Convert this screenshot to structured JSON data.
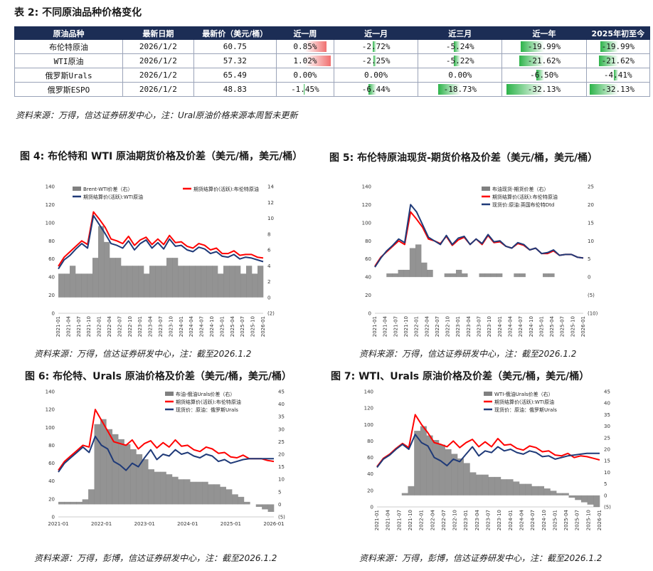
{
  "table_title": "表 2:  不同原油品种价格变化",
  "table": {
    "headers": [
      "原油品种",
      "最新日期",
      "最新价（美元/桶）",
      "近一周",
      "近一月",
      "近三月",
      "近一年",
      "2025年初至今"
    ],
    "rows": [
      {
        "name": "布伦特原油",
        "date": "2026/1/2",
        "price": "60.75",
        "w": "0.85%",
        "m": "-2.72%",
        "q": "-5.24%",
        "y": "-19.99%",
        "ytd": "-19.99%"
      },
      {
        "name": "WTI原油",
        "date": "2026/1/2",
        "price": "57.32",
        "w": "1.02%",
        "m": "-2.25%",
        "q": "-5.22%",
        "y": "-21.62%",
        "ytd": "-21.62%"
      },
      {
        "name": "俄罗斯Urals",
        "date": "2026/1/2",
        "price": "65.49",
        "w": "0.00%",
        "m": "0.00%",
        "q": "0.00%",
        "y": "-6.50%",
        "ytd": "-4.41%"
      },
      {
        "name": "俄罗斯ESPO",
        "date": "2026/1/2",
        "price": "48.83",
        "w": "-1.45%",
        "m": "-6.44%",
        "q": "-18.73%",
        "y": "-32.13%",
        "ytd": "-32.13%"
      }
    ],
    "colors": {
      "header_bg": "#1c2d55",
      "pos_bar": "#f07070",
      "neg_bar": "#2db34a"
    }
  },
  "table_source": "资料来源：万得，信达证券研发中心，注：Ural原油价格来源本周暂未更新",
  "charts": [
    {
      "title": "图 4:  布伦特和 WTI 原油期货价格及价差（美元/桶，美元/桶）",
      "source": "资料来源：万得，信达证券研发中心，注：截至2026.1.2"
    },
    {
      "title": "图 5:  布伦特原油现货-期货价格及价差（美元/桶，美元/桶）",
      "source": "资料来源：万得，信达证券研发中心，注：截至2026.1.2"
    },
    {
      "title": "图 6:  布伦特、Urals 原油价格及价差（美元/桶，美元/桶）",
      "source": "资料来源：万得，彭博，信达证券研发中心，注：截至2026.1.2"
    },
    {
      "title": "图 7:  WTI、Urals 原油价格及价差（美元/桶，美元/桶）",
      "source": "资料来源：万得，彭博，信达证券研发中心，注：截至2026.1.2"
    }
  ],
  "chart_data": [
    {
      "type": "line",
      "legend": [
        "Brent-WTI价差（右）",
        "期货结算价(活跃):布伦特原油",
        "期货结算价(活跃):WTI原油"
      ],
      "left_ticks": [
        "0",
        "20",
        "40",
        "60",
        "80",
        "100",
        "120",
        "140"
      ],
      "right_ticks": [
        "(2)",
        "0",
        "2",
        "4",
        "6",
        "8",
        "10",
        "12",
        "14"
      ],
      "x_ticks": [
        "2021-01",
        "2021-04",
        "2021-07",
        "2021-10",
        "2022-01",
        "2022-04",
        "2022-07",
        "2022-10",
        "2023-01",
        "2023-04",
        "2023-07",
        "2023-10",
        "2024-01",
        "2024-04",
        "2024-07",
        "2024-10",
        "2025-01",
        "2025-04",
        "2025-07",
        "2025-10",
        "2026-01"
      ],
      "ylim": [
        0,
        140
      ],
      "y2lim": [
        -2,
        14
      ],
      "series": [
        {
          "name": "期货结算价(活跃):布伦特原油",
          "color": "#ff0000",
          "values": [
            52,
            62,
            68,
            74,
            80,
            76,
            112,
            104,
            95,
            82,
            80,
            77,
            85,
            75,
            81,
            84,
            76,
            82,
            76,
            86,
            78,
            79,
            74,
            72,
            77,
            75,
            70,
            72,
            66,
            66,
            69,
            64,
            65,
            65,
            62,
            61
          ]
        },
        {
          "name": "期货结算价(活跃):WTI原油",
          "color": "#1f3a78",
          "values": [
            49,
            59,
            64,
            71,
            77,
            72,
            108,
            98,
            88,
            77,
            75,
            72,
            80,
            70,
            77,
            81,
            72,
            78,
            71,
            82,
            74,
            75,
            70,
            68,
            73,
            71,
            66,
            68,
            63,
            62,
            65,
            60,
            62,
            61,
            59,
            57
          ]
        },
        {
          "name": "Brent-WTI价差（右）",
          "color": "#808080",
          "values": [
            3,
            3,
            4,
            3,
            3,
            3,
            5,
            9,
            7,
            5,
            5,
            4,
            4,
            4,
            4,
            3,
            4,
            4,
            4,
            5,
            5,
            4,
            4,
            4,
            4,
            4,
            4,
            4,
            3,
            4,
            4,
            4,
            3,
            4,
            3,
            4
          ]
        }
      ]
    },
    {
      "type": "line",
      "legend": [
        "布油现货-期货价差（右）",
        "期货结算价(活跃):布伦特原油",
        "现货价:原油:英国布伦特Dtd"
      ],
      "left_ticks": [
        "0",
        "20",
        "40",
        "60",
        "80",
        "100",
        "120",
        "140"
      ],
      "right_ticks": [
        "(10)",
        "(5)",
        "0",
        "5",
        "10",
        "15",
        "20",
        "25"
      ],
      "x_ticks": [
        "2021-01",
        "2021-04",
        "2021-07",
        "2021-10",
        "2022-01",
        "2022-04",
        "2022-07",
        "2022-10",
        "2023-01",
        "2023-04",
        "2023-07",
        "2023-10",
        "2024-01",
        "2024-04",
        "2024-07",
        "2024-10",
        "2025-01",
        "2025-04",
        "2025-07",
        "2025-10",
        "2026-01"
      ],
      "ylim": [
        0,
        140
      ],
      "y2lim": [
        -10,
        25
      ],
      "series": [
        {
          "name": "期货结算价(活跃):布伦特原油",
          "color": "#ff0000",
          "values": [
            52,
            62,
            68,
            74,
            80,
            76,
            112,
            104,
            95,
            82,
            80,
            77,
            85,
            75,
            81,
            84,
            76,
            82,
            76,
            86,
            78,
            79,
            74,
            72,
            77,
            75,
            70,
            72,
            66,
            66,
            69,
            64,
            65,
            65,
            62,
            61
          ]
        },
        {
          "name": "现货价:原油:英国布伦特Dtd",
          "color": "#1f3a78",
          "values": [
            51,
            61,
            69,
            75,
            82,
            78,
            120,
            112,
            98,
            84,
            80,
            76,
            86,
            76,
            83,
            85,
            76,
            82,
            77,
            87,
            79,
            80,
            74,
            72,
            78,
            76,
            70,
            72,
            66,
            67,
            70,
            64,
            65,
            65,
            62,
            61
          ]
        },
        {
          "name": "布油现货-期货价差（右）",
          "color": "#808080",
          "values": [
            0,
            0,
            1,
            1,
            2,
            2,
            8,
            9,
            4,
            2,
            0,
            0,
            1,
            1,
            2,
            1,
            0,
            0,
            1,
            1,
            1,
            1,
            0,
            0,
            1,
            1,
            0,
            0,
            0,
            1,
            1,
            0,
            0,
            0,
            0,
            0
          ]
        }
      ]
    },
    {
      "type": "line",
      "legend": [
        "布油-俄油Urals价差（右）",
        "期货结算价(活跃):布伦特原油",
        "现货价：原油：俄罗斯Urals"
      ],
      "left_ticks": [
        "0",
        "20",
        "40",
        "60",
        "80",
        "100",
        "120",
        "140"
      ],
      "right_ticks": [
        "(5)",
        "0",
        "5",
        "10",
        "15",
        "20",
        "25",
        "30",
        "35",
        "40",
        "45"
      ],
      "x_ticks": [
        "2021-01",
        "2022-01",
        "2023-01",
        "2024-01",
        "2025-01",
        "2026-01"
      ],
      "ylim": [
        0,
        140
      ],
      "y2lim": [
        -5,
        45
      ],
      "series": [
        {
          "name": "期货结算价(活跃):布伦特原油",
          "color": "#ff0000",
          "values": [
            52,
            62,
            68,
            74,
            80,
            78,
            120,
            108,
            96,
            84,
            82,
            80,
            86,
            76,
            82,
            85,
            77,
            83,
            78,
            86,
            79,
            80,
            75,
            73,
            78,
            76,
            71,
            72,
            67,
            66,
            69,
            65,
            65,
            65,
            63,
            62
          ]
        },
        {
          "name": "现货价：原油：俄罗斯Urals",
          "color": "#1f3a78",
          "values": [
            50,
            60,
            66,
            72,
            78,
            72,
            90,
            80,
            76,
            62,
            58,
            52,
            60,
            56,
            66,
            75,
            64,
            70,
            68,
            75,
            70,
            72,
            68,
            66,
            70,
            68,
            62,
            64,
            60,
            62,
            64,
            65,
            65,
            65,
            65,
            65
          ]
        },
        {
          "name": "布油-俄油Urals价差（右）",
          "color": "#808080",
          "values": [
            1,
            1,
            1,
            1,
            2,
            6,
            32,
            34,
            30,
            28,
            26,
            24,
            22,
            20,
            18,
            14,
            13,
            13,
            12,
            11,
            10,
            10,
            9,
            9,
            9,
            8,
            8,
            7,
            6,
            4,
            3,
            1,
            0,
            -1,
            -2,
            -3
          ]
        }
      ]
    },
    {
      "type": "line",
      "legend": [
        "WTI-俄油Urals价差（右）",
        "期货结算价(活跃):WTI原油",
        "现货价：原油：俄罗斯Urals"
      ],
      "left_ticks": [
        "0",
        "20",
        "40",
        "60",
        "80",
        "100",
        "120",
        "140"
      ],
      "right_ticks": [
        "(5)",
        "0",
        "5",
        "10",
        "15",
        "20",
        "25",
        "30",
        "35",
        "40",
        "45"
      ],
      "x_ticks": [
        "2021-01",
        "2021-04",
        "2021-07",
        "2021-10",
        "2022-01",
        "2022-04",
        "2022-07",
        "2022-10",
        "2023-01",
        "2023-04",
        "2023-07",
        "2023-10",
        "2024-01",
        "2024-04",
        "2024-07",
        "2024-10",
        "2025-01",
        "2025-04",
        "2025-07",
        "2025-10",
        "2026-01"
      ],
      "ylim": [
        0,
        140
      ],
      "y2lim": [
        -5,
        45
      ],
      "series": [
        {
          "name": "期货结算价(活跃):WTI原油",
          "color": "#ff0000",
          "values": [
            49,
            59,
            64,
            71,
            77,
            72,
            112,
            100,
            90,
            78,
            76,
            73,
            80,
            72,
            78,
            82,
            73,
            79,
            73,
            83,
            75,
            76,
            71,
            69,
            74,
            72,
            67,
            68,
            63,
            62,
            65,
            60,
            62,
            61,
            59,
            57
          ]
        },
        {
          "name": "现货价：原油：俄罗斯Urals",
          "color": "#1f3a78",
          "values": [
            48,
            58,
            63,
            70,
            76,
            70,
            88,
            78,
            74,
            60,
            56,
            50,
            58,
            55,
            64,
            73,
            62,
            68,
            66,
            73,
            68,
            70,
            66,
            64,
            68,
            66,
            61,
            62,
            58,
            60,
            62,
            63,
            64,
            65,
            65,
            65
          ]
        },
        {
          "name": "WTI-俄油Urals价差（右）",
          "color": "#808080",
          "values": [
            0,
            0,
            0,
            0,
            1,
            4,
            28,
            30,
            26,
            24,
            22,
            20,
            18,
            16,
            14,
            10,
            9,
            9,
            8,
            8,
            7,
            7,
            6,
            5,
            5,
            4,
            4,
            3,
            2,
            1,
            1,
            -1,
            -2,
            -3,
            -4,
            -5
          ]
        }
      ]
    }
  ]
}
